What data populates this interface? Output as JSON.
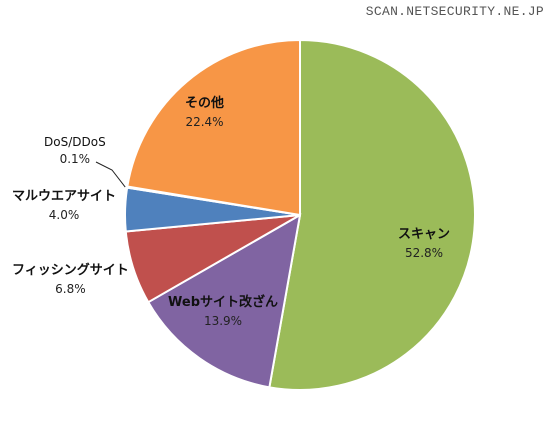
{
  "watermark": "SCAN.NETSECURITY.NE.JP",
  "chart_data": {
    "type": "pie",
    "start_angle_deg": 0,
    "direction": "clockwise",
    "slices": [
      {
        "label": "スキャン",
        "value": 52.8,
        "value_label": "52.8%",
        "color": "#9BBB59"
      },
      {
        "label": "Webサイト改ざん",
        "value": 13.9,
        "value_label": "13.9%",
        "color": "#8064A2"
      },
      {
        "label": "フィッシングサイト",
        "value": 6.8,
        "value_label": "6.8%",
        "color": "#C0504D"
      },
      {
        "label": "マルウエアサイト",
        "value": 4.0,
        "value_label": "4.0%",
        "color": "#4F81BD"
      },
      {
        "label": "DoS/DDoS",
        "value": 0.1,
        "value_label": "0.1%",
        "color": "#4BACC6"
      },
      {
        "label": "その他",
        "value": 22.4,
        "value_label": "22.4%",
        "color": "#F79646"
      }
    ]
  }
}
